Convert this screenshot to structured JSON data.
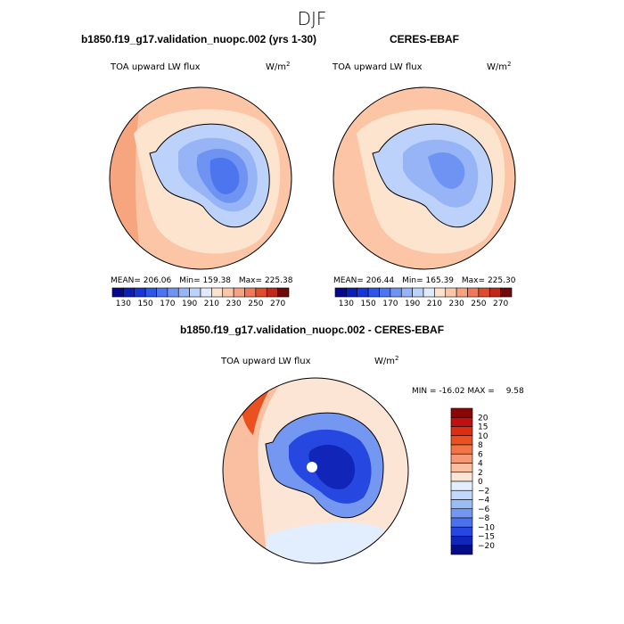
{
  "chart_data": {
    "season": "DJF",
    "panels": [
      {
        "type": "heatmap",
        "projection": "south-polar-stereographic",
        "title": "b1850.f19_g17.validation_nuopc.002 (yrs 1-30)",
        "variable": "TOA upward LW flux",
        "units": "W/m",
        "units_sup": "2",
        "stats": {
          "mean_label": "MEAN=",
          "mean": "206.06",
          "min_label": "Min=",
          "min": "159.38",
          "max_label": "Max=",
          "max": "225.38"
        },
        "colorbar": {
          "ticks": [
            "130",
            "150",
            "170",
            "190",
            "210",
            "230",
            "250",
            "270"
          ],
          "levels": [
            130,
            140,
            150,
            160,
            170,
            180,
            190,
            200,
            210,
            220,
            230,
            240,
            250,
            260,
            270
          ],
          "colors": [
            "#08088a",
            "#0a1fb5",
            "#1736d8",
            "#2f56e6",
            "#4c75ee",
            "#6f93f2",
            "#97b4f6",
            "#bcd2fb",
            "#e0ecfd",
            "#fde3cf",
            "#fcc7a8",
            "#f7a380",
            "#f0795a",
            "#df4b2e",
            "#c0281a",
            "#6e0a0a"
          ]
        }
      },
      {
        "type": "heatmap",
        "projection": "south-polar-stereographic",
        "title": "CERES-EBAF",
        "variable": "TOA upward LW flux",
        "units": "W/m",
        "units_sup": "2",
        "stats": {
          "mean_label": "MEAN=",
          "mean": "206.44",
          "min_label": "Min=",
          "min": "165.39",
          "max_label": "Max=",
          "max": "225.30"
        },
        "colorbar": {
          "ticks": [
            "130",
            "150",
            "170",
            "190",
            "210",
            "230",
            "250",
            "270"
          ],
          "levels": [
            130,
            140,
            150,
            160,
            170,
            180,
            190,
            200,
            210,
            220,
            230,
            240,
            250,
            260,
            270
          ],
          "colors": [
            "#08088a",
            "#0a1fb5",
            "#1736d8",
            "#2f56e6",
            "#4c75ee",
            "#6f93f2",
            "#97b4f6",
            "#bcd2fb",
            "#e0ecfd",
            "#fde3cf",
            "#fcc7a8",
            "#f7a380",
            "#f0795a",
            "#df4b2e",
            "#c0281a",
            "#6e0a0a"
          ]
        }
      },
      {
        "type": "heatmap",
        "projection": "south-polar-stereographic",
        "title": "b1850.f19_g17.validation_nuopc.002 - CERES-EBAF",
        "variable": "TOA upward LW flux",
        "units": "W/m",
        "units_sup": "2",
        "stats": {
          "min_label": "MIN =",
          "min": "-16.02",
          "max_label": "MAX =",
          "max": "9.58"
        },
        "colorbar": {
          "ticks": [
            "20",
            "15",
            "10",
            "8",
            "6",
            "4",
            "2",
            "0",
            "−2",
            "−4",
            "−6",
            "−8",
            "−10",
            "−15",
            "−20"
          ],
          "levels": [
            20,
            15,
            10,
            8,
            6,
            4,
            2,
            0,
            -2,
            -4,
            -6,
            -8,
            -10,
            -15,
            -20
          ],
          "colors": [
            "#8a0707",
            "#c01010",
            "#dc2f12",
            "#ea5020",
            "#f27548",
            "#f59876",
            "#f9bfa0",
            "#fde5d5",
            "#e2eefd",
            "#c2d8fa",
            "#9bbdf6",
            "#7498f2",
            "#4a72ec",
            "#2648e0",
            "#1126b8",
            "#050c88"
          ]
        }
      }
    ]
  },
  "colors": {
    "land_outline": "#000000",
    "ocean_warm_far": "#f7a57f",
    "ocean_warm": "#fcc5a6",
    "ocean_peach": "#fde4cf",
    "diff_light_blue": "#d7e6fc"
  }
}
